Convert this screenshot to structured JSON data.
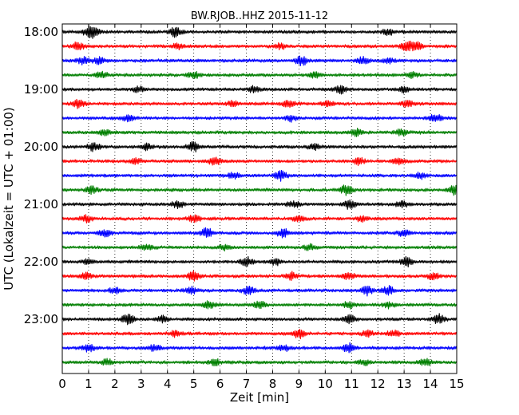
{
  "chart_data": {
    "type": "line",
    "title": "BW.RJOB..HHZ 2015-11-12",
    "xlabel": "Zeit  [min]",
    "ylabel": "UTC (Lokalzeit = UTC + 01:00)",
    "xlim": [
      0,
      15
    ],
    "x_ticks": [
      0,
      1,
      2,
      3,
      4,
      5,
      6,
      7,
      8,
      9,
      10,
      11,
      12,
      13,
      14,
      15
    ],
    "x_tick_labels": [
      "0",
      "1",
      "2",
      "3",
      "4",
      "5",
      "6",
      "7",
      "8",
      "9",
      "10",
      "11",
      "12",
      "13",
      "14",
      "15"
    ],
    "y_tick_labels": [
      "18:00",
      "19:00",
      "20:00",
      "21:00",
      "22:00",
      "23:00"
    ],
    "grid": "vertical dotted",
    "legend": "none",
    "colors": [
      "#000000",
      "#ff0000",
      "#0000ff",
      "#007f00"
    ],
    "series": [
      {
        "start": "18:00",
        "color": "#000000",
        "bursts": [
          [
            1.0,
            0.9
          ],
          [
            1.2,
            0.7
          ],
          [
            4.3,
            1.0
          ],
          [
            12.4,
            0.6
          ]
        ]
      },
      {
        "start": "18:15",
        "color": "#ff0000",
        "bursts": [
          [
            0.6,
            0.8
          ],
          [
            4.4,
            0.6
          ],
          [
            8.3,
            0.5
          ],
          [
            13.1,
            1.0
          ],
          [
            13.5,
            0.8
          ]
        ]
      },
      {
        "start": "18:30",
        "color": "#0000ff",
        "bursts": [
          [
            0.8,
            0.7
          ],
          [
            1.4,
            0.6
          ],
          [
            9.1,
            0.9
          ],
          [
            11.4,
            0.7
          ],
          [
            12.4,
            0.6
          ]
        ]
      },
      {
        "start": "18:45",
        "color": "#007f00",
        "bursts": [
          [
            1.5,
            0.6
          ],
          [
            5.0,
            0.6
          ],
          [
            9.6,
            0.6
          ],
          [
            13.3,
            0.5
          ]
        ]
      },
      {
        "start": "19:00",
        "color": "#000000",
        "bursts": [
          [
            2.9,
            0.6
          ],
          [
            7.3,
            0.6
          ],
          [
            10.6,
            0.8
          ],
          [
            13.0,
            0.6
          ]
        ]
      },
      {
        "start": "19:15",
        "color": "#ff0000",
        "bursts": [
          [
            0.6,
            0.8
          ],
          [
            6.5,
            0.6
          ],
          [
            8.6,
            0.7
          ],
          [
            10.1,
            0.6
          ],
          [
            13.1,
            0.6
          ]
        ]
      },
      {
        "start": "19:30",
        "color": "#0000ff",
        "bursts": [
          [
            2.5,
            0.6
          ],
          [
            8.7,
            0.6
          ],
          [
            14.2,
            0.8
          ]
        ]
      },
      {
        "start": "19:45",
        "color": "#007f00",
        "bursts": [
          [
            1.6,
            0.6
          ],
          [
            11.2,
            0.7
          ],
          [
            12.9,
            0.7
          ]
        ]
      },
      {
        "start": "20:00",
        "color": "#000000",
        "bursts": [
          [
            1.2,
            0.9
          ],
          [
            3.2,
            0.6
          ],
          [
            5.0,
            1.0
          ],
          [
            9.6,
            0.6
          ]
        ]
      },
      {
        "start": "20:15",
        "color": "#ff0000",
        "bursts": [
          [
            2.8,
            0.6
          ],
          [
            5.8,
            0.8
          ],
          [
            11.3,
            0.7
          ],
          [
            12.8,
            0.6
          ]
        ]
      },
      {
        "start": "20:30",
        "color": "#0000ff",
        "bursts": [
          [
            8.3,
            1.0
          ],
          [
            6.5,
            0.6
          ],
          [
            13.6,
            0.6
          ]
        ]
      },
      {
        "start": "20:45",
        "color": "#007f00",
        "bursts": [
          [
            1.1,
            0.8
          ],
          [
            10.8,
            1.0
          ],
          [
            14.9,
            0.9
          ]
        ]
      },
      {
        "start": "21:00",
        "color": "#000000",
        "bursts": [
          [
            4.4,
            0.7
          ],
          [
            8.8,
            0.6
          ],
          [
            10.9,
            1.0
          ],
          [
            12.9,
            0.6
          ]
        ]
      },
      {
        "start": "21:15",
        "color": "#ff0000",
        "bursts": [
          [
            0.9,
            0.7
          ],
          [
            5.0,
            0.7
          ],
          [
            9.0,
            0.6
          ],
          [
            11.4,
            0.6
          ]
        ]
      },
      {
        "start": "21:30",
        "color": "#0000ff",
        "bursts": [
          [
            1.6,
            0.8
          ],
          [
            5.5,
            1.0
          ],
          [
            8.4,
            0.8
          ],
          [
            13.0,
            0.6
          ]
        ]
      },
      {
        "start": "21:45",
        "color": "#007f00",
        "bursts": [
          [
            3.2,
            0.6
          ],
          [
            6.2,
            0.6
          ],
          [
            9.4,
            0.6
          ]
        ]
      },
      {
        "start": "22:00",
        "color": "#000000",
        "bursts": [
          [
            1.0,
            0.6
          ],
          [
            7.0,
            0.9
          ],
          [
            8.1,
            0.7
          ],
          [
            13.1,
            1.0
          ]
        ]
      },
      {
        "start": "22:15",
        "color": "#ff0000",
        "bursts": [
          [
            0.9,
            0.7
          ],
          [
            5.0,
            0.9
          ],
          [
            8.7,
            0.8
          ],
          [
            10.9,
            0.6
          ],
          [
            14.1,
            0.6
          ]
        ]
      },
      {
        "start": "22:30",
        "color": "#0000ff",
        "bursts": [
          [
            2.0,
            0.6
          ],
          [
            4.9,
            0.7
          ],
          [
            7.1,
            0.8
          ],
          [
            11.6,
            0.9
          ],
          [
            12.4,
            0.9
          ]
        ]
      },
      {
        "start": "22:45",
        "color": "#007f00",
        "bursts": [
          [
            5.6,
            0.8
          ],
          [
            7.5,
            0.7
          ],
          [
            10.9,
            0.7
          ],
          [
            12.4,
            0.6
          ]
        ]
      },
      {
        "start": "23:00",
        "color": "#000000",
        "bursts": [
          [
            2.5,
            1.0
          ],
          [
            3.8,
            0.7
          ],
          [
            10.9,
            0.9
          ],
          [
            14.3,
            1.0
          ]
        ]
      },
      {
        "start": "23:15",
        "color": "#ff0000",
        "bursts": [
          [
            4.3,
            0.6
          ],
          [
            9.0,
            0.9
          ],
          [
            11.6,
            0.6
          ],
          [
            12.6,
            0.6
          ]
        ]
      },
      {
        "start": "23:30",
        "color": "#0000ff",
        "bursts": [
          [
            1.0,
            0.7
          ],
          [
            3.5,
            0.6
          ],
          [
            8.4,
            0.7
          ],
          [
            10.9,
            1.0
          ]
        ]
      },
      {
        "start": "23:45",
        "color": "#007f00",
        "bursts": [
          [
            1.7,
            0.6
          ],
          [
            5.8,
            0.6
          ],
          [
            11.5,
            0.6
          ],
          [
            13.8,
            0.7
          ]
        ]
      }
    ]
  }
}
